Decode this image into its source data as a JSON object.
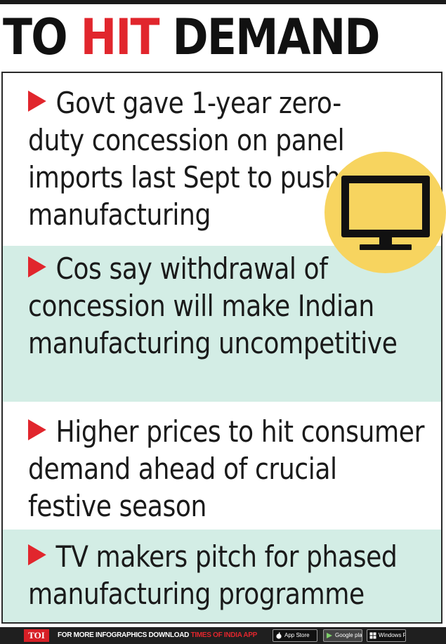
{
  "title": {
    "part1": "TO ",
    "part2": "HIT",
    "part3": " DEMAND"
  },
  "points": [
    {
      "text": "Govt gave 1-year zero-duty concession on panel imports last Sept to push manufacturing"
    },
    {
      "text": "Cos say withdrawal of concession will make Indian manufacturing uncompetitive"
    },
    {
      "text": "Higher prices to hit consumer demand ahead of crucial festive season"
    },
    {
      "text": "TV makers pitch for phased manufacturing programme"
    }
  ],
  "icons": {
    "tv": "tv-monitor-icon",
    "bullet": "red-chevron-arrow"
  },
  "footer": {
    "logo": "TOI",
    "text_prefix": "FOR MORE  INFOGRAPHICS DOWNLOAD ",
    "text_app": "TIMES OF INDIA  APP",
    "badges": [
      "App Store",
      "Google play",
      "Windows Phone"
    ]
  },
  "colors": {
    "accent_red": "#e1262d",
    "alt_row": "#d3ede5",
    "tv_circle": "#f7d45f",
    "text": "#1a1a1a"
  }
}
